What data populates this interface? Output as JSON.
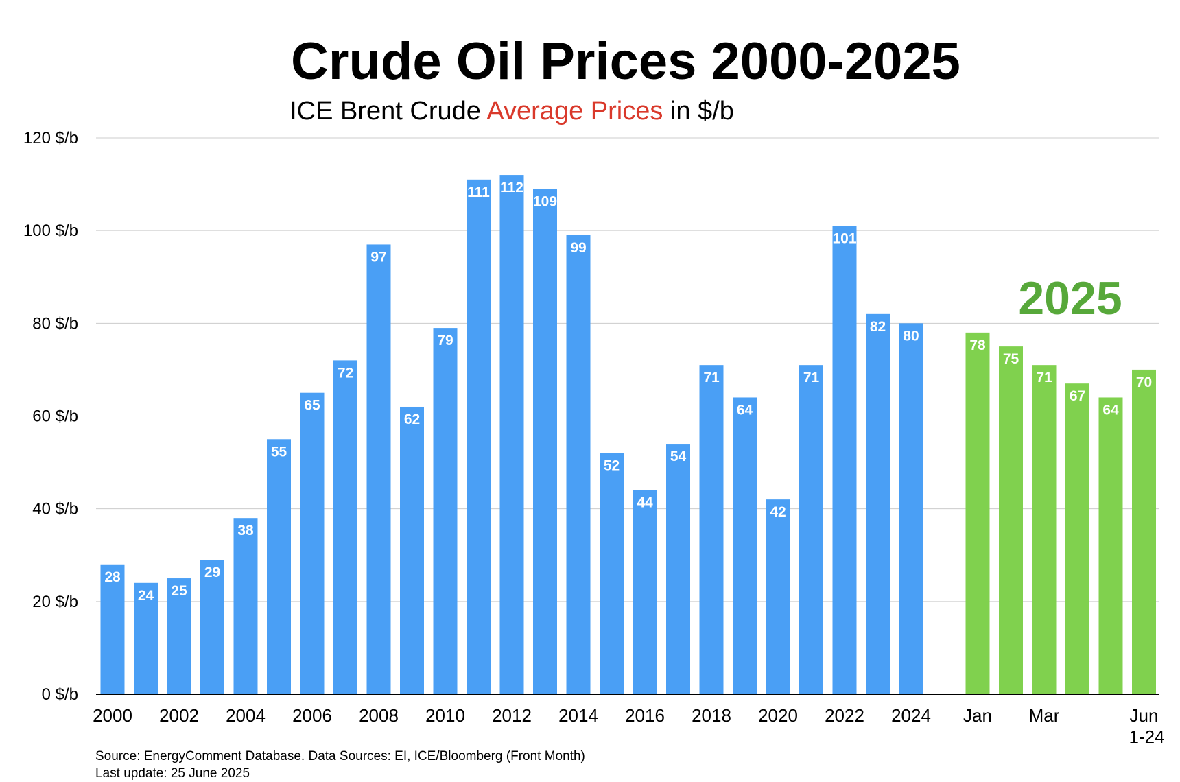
{
  "colors": {
    "annual": "#4a9ff5",
    "monthly": "#80d14e",
    "group_label": "#57a83a",
    "accent": "#d9392b",
    "grid": "#cccccc"
  },
  "chart_data": {
    "type": "bar",
    "title": "Crude Oil Prices 2000-2025",
    "subtitle_parts": [
      "ICE Brent Crude ",
      "Average Prices",
      " in $/b"
    ],
    "ylim": [
      0,
      120
    ],
    "yticks": [
      {
        "value": 0,
        "label": "0 $/b"
      },
      {
        "value": 20,
        "label": "20 $/b"
      },
      {
        "value": 40,
        "label": "40 $/b"
      },
      {
        "value": 60,
        "label": "60 $/b"
      },
      {
        "value": 80,
        "label": "80 $/b"
      },
      {
        "value": 100,
        "label": "100 $/b"
      },
      {
        "value": 120,
        "label": "120 $/b"
      }
    ],
    "grid": true,
    "annual": {
      "categories": [
        "2000",
        "2001",
        "2002",
        "2003",
        "2004",
        "2005",
        "2006",
        "2007",
        "2008",
        "2009",
        "2010",
        "2011",
        "2012",
        "2013",
        "2014",
        "2015",
        "2016",
        "2017",
        "2018",
        "2019",
        "2020",
        "2021",
        "2022",
        "2023",
        "2024"
      ],
      "values": [
        28,
        24,
        25,
        29,
        38,
        55,
        65,
        72,
        97,
        62,
        79,
        111,
        112,
        109,
        99,
        52,
        44,
        54,
        71,
        64,
        42,
        71,
        101,
        82,
        80
      ],
      "tick_labels_shown": [
        "2000",
        "2002",
        "2004",
        "2006",
        "2008",
        "2010",
        "2012",
        "2014",
        "2016",
        "2018",
        "2020",
        "2022",
        "2024"
      ]
    },
    "monthly_2025": {
      "group_label": "2025",
      "categories": [
        "Jan",
        "Feb",
        "Mar",
        "Apr",
        "May",
        "Jun"
      ],
      "values": [
        78,
        75,
        71,
        67,
        64,
        70
      ],
      "tick_labels_shown": [
        {
          "label": "Jan",
          "index": 0
        },
        {
          "label": "Mar",
          "index": 2
        },
        {
          "label": "Jun",
          "index": 5,
          "sublabel": "1-24"
        }
      ]
    }
  },
  "footnote": {
    "source": "Source: EnergyComment Database. Data Sources: EI, ICE/Bloomberg (Front Month)",
    "update": "Last update: 25 June 2025"
  }
}
